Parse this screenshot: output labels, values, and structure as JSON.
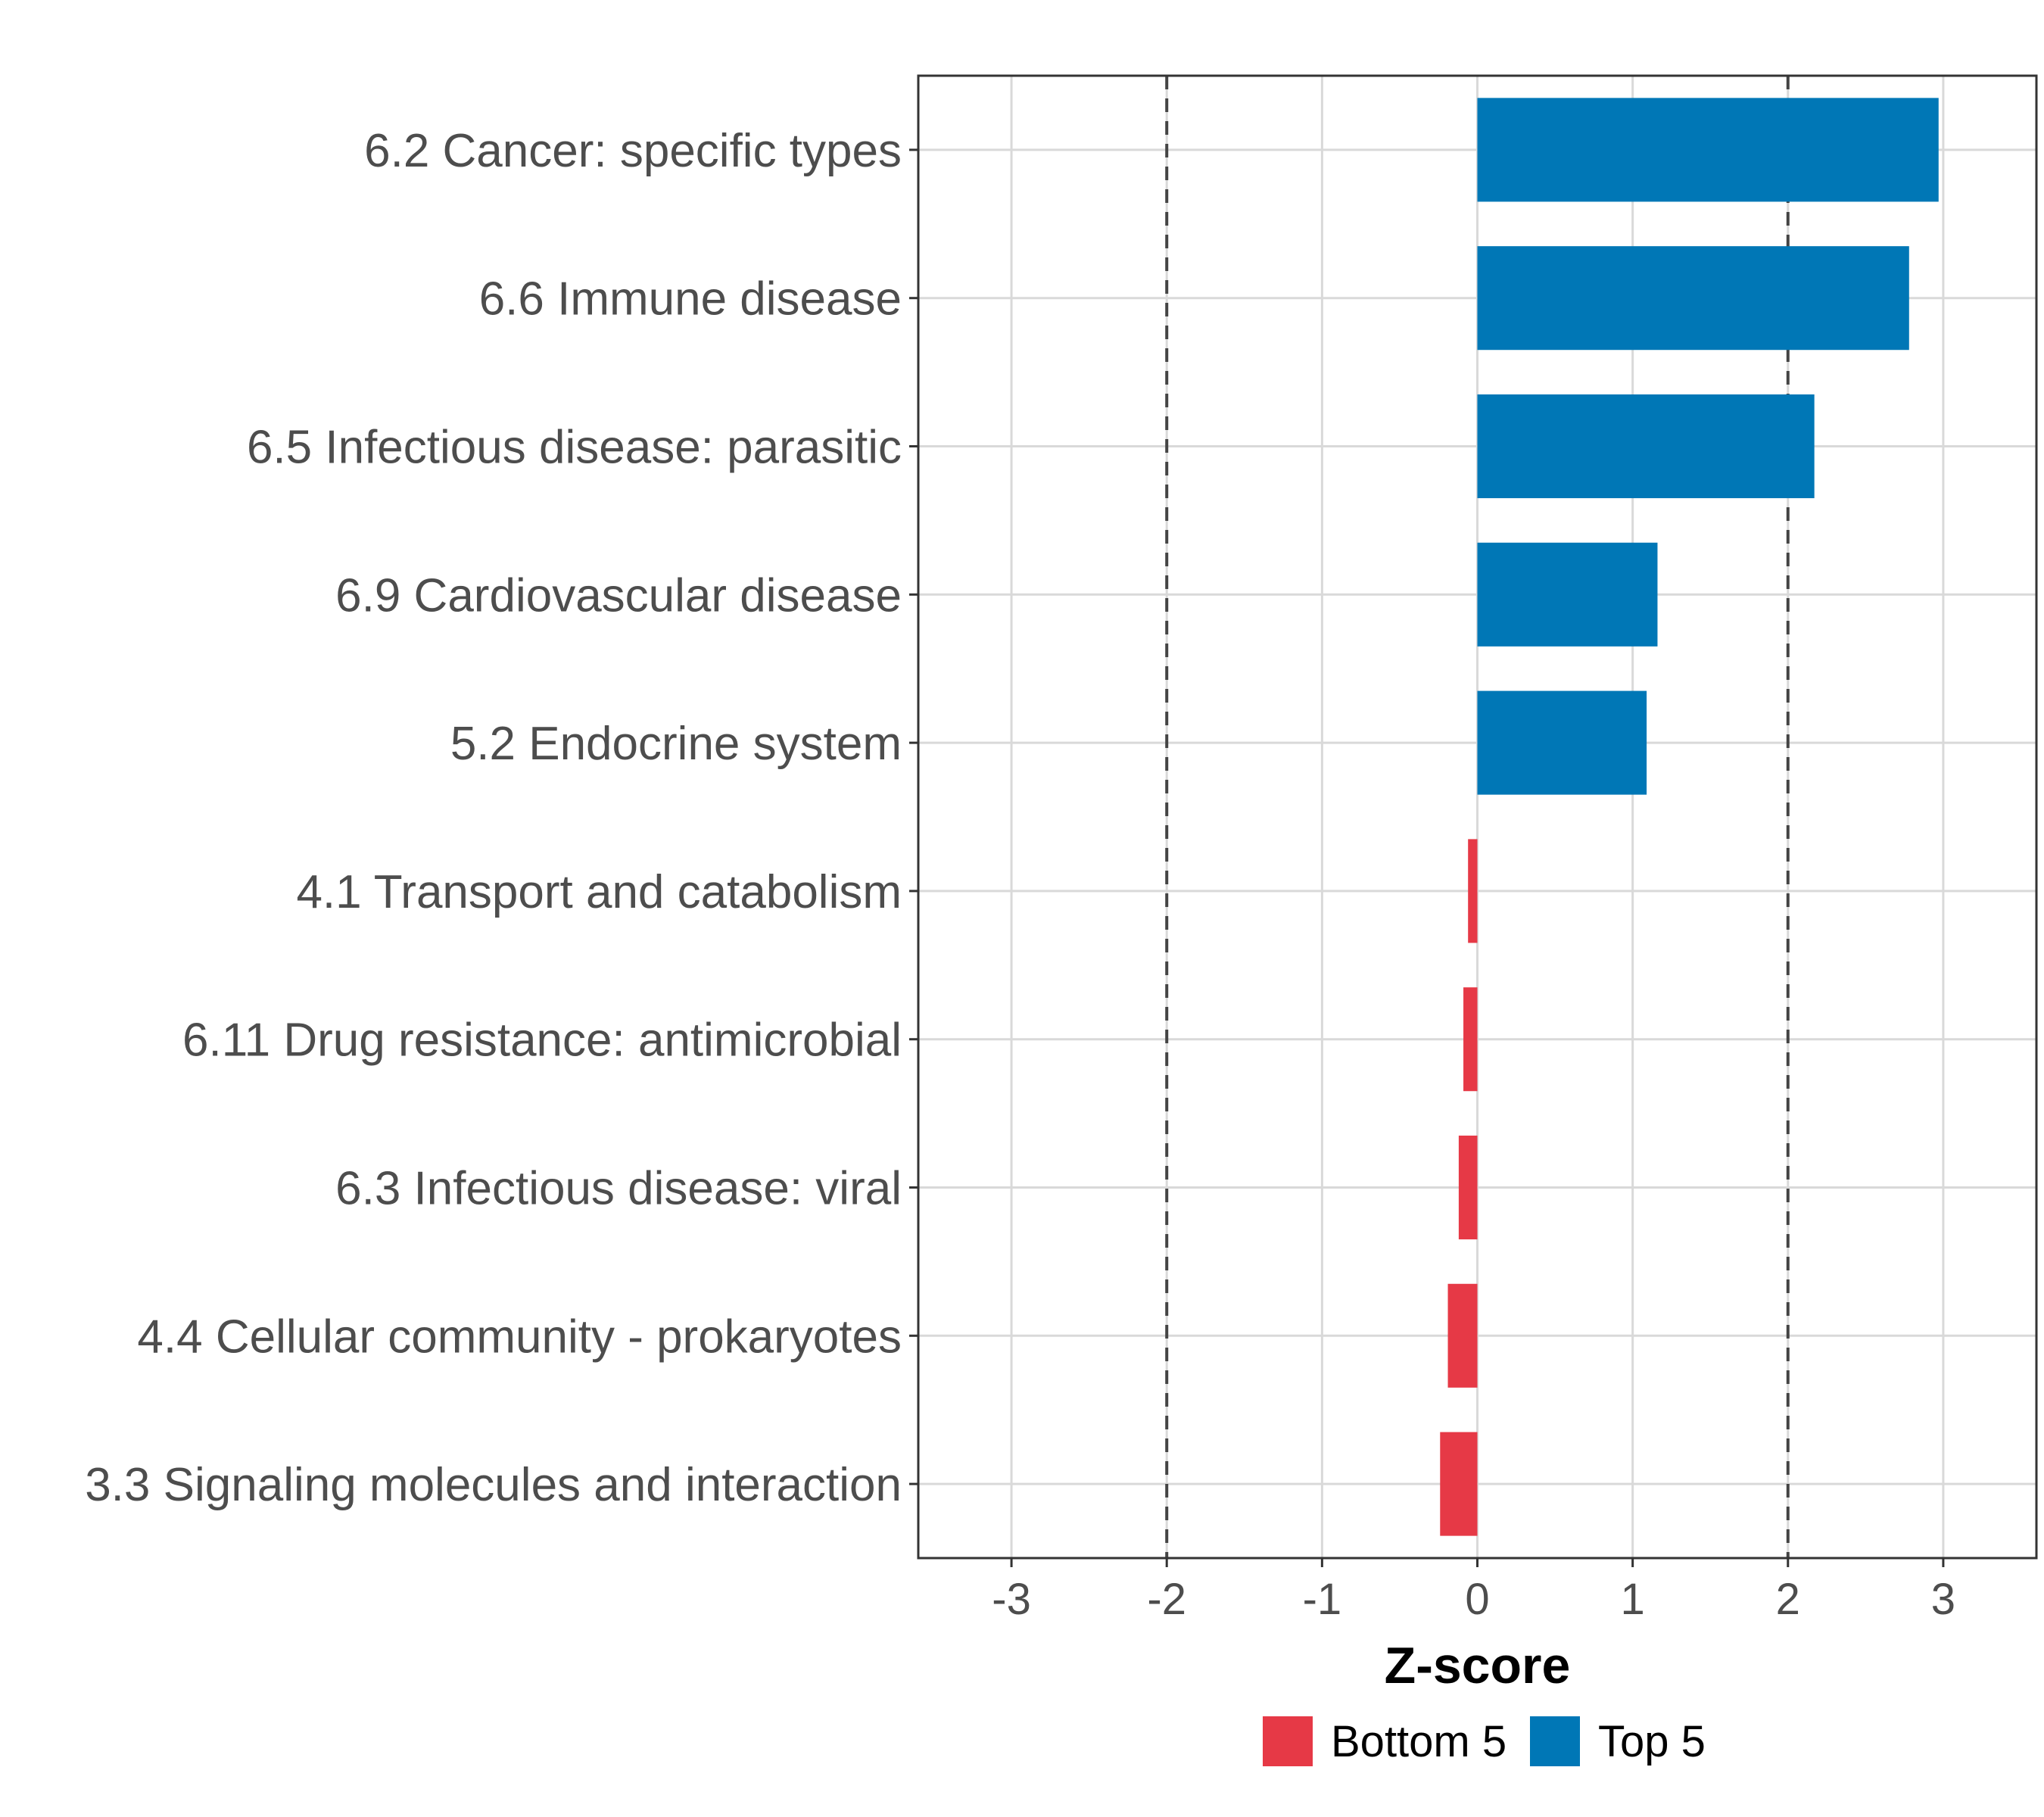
{
  "colors": {
    "top": "#0077B6",
    "bottom": "#E63946",
    "grid": "#d9d9d9",
    "refline": "#444444",
    "panel_border": "#333333"
  },
  "chart_data": {
    "type": "bar",
    "orientation": "horizontal",
    "title": "",
    "xlabel": "Z-score",
    "ylabel": "",
    "xlim": [
      -3.6,
      3.6
    ],
    "xticks": [
      -3,
      -2,
      -1,
      0,
      1,
      2,
      3
    ],
    "xtick_labels": [
      "-3",
      "-2",
      "-1",
      "0",
      "1",
      "2",
      "3"
    ],
    "reference_lines": [
      -2,
      2
    ],
    "grid": true,
    "categories": [
      "6.2 Cancer: specific types",
      "6.6 Immune disease",
      "6.5 Infectious disease: parasitic",
      "6.9 Cardiovascular disease",
      "5.2 Endocrine system",
      "4.1 Transport and catabolism",
      "6.11 Drug resistance: antimicrobial",
      "6.3 Infectious disease: viral",
      "4.4 Cellular community - prokaryotes",
      "3.3 Signaling molecules and interaction"
    ],
    "values": [
      2.97,
      2.78,
      2.17,
      1.16,
      1.09,
      -0.06,
      -0.09,
      -0.12,
      -0.19,
      -0.24
    ],
    "groups": [
      "Top 5",
      "Top 5",
      "Top 5",
      "Top 5",
      "Top 5",
      "Bottom 5",
      "Bottom 5",
      "Bottom 5",
      "Bottom 5",
      "Bottom 5"
    ],
    "legend": {
      "placement": "bottom",
      "entries": [
        {
          "label": "Bottom 5",
          "color": "#E63946"
        },
        {
          "label": "Top 5",
          "color": "#0077B6"
        }
      ]
    }
  }
}
